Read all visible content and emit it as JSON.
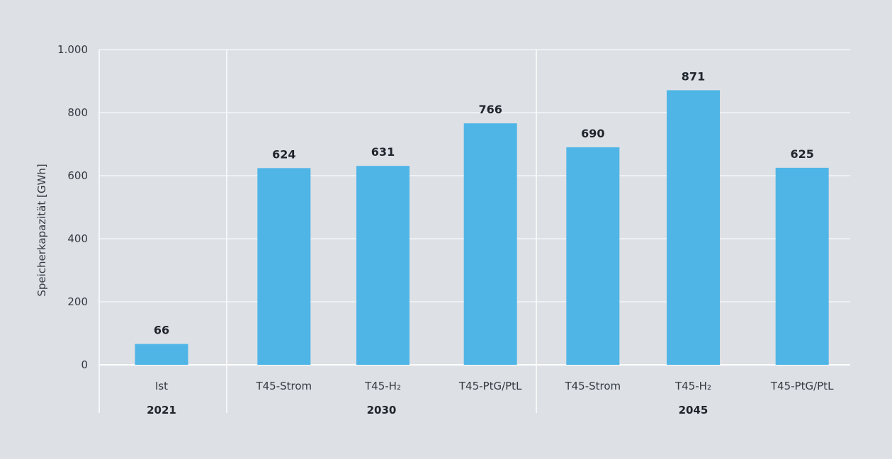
{
  "chart_data": {
    "type": "bar",
    "ylabel": "Speicherkapazität [GWh]",
    "ylim": [
      0,
      1000
    ],
    "yticks": [
      {
        "value": 0,
        "label": "0"
      },
      {
        "value": 200,
        "label": "200"
      },
      {
        "value": 400,
        "label": "400"
      },
      {
        "value": 600,
        "label": "600"
      },
      {
        "value": 800,
        "label": "800"
      },
      {
        "value": 1000,
        "label": "1.000"
      }
    ],
    "grid": true,
    "legend": "none",
    "bar_color": "#4fb5e6",
    "groups": [
      {
        "label": "2021",
        "bars": [
          {
            "category": "Ist",
            "value": 66
          }
        ]
      },
      {
        "label": "2030",
        "bars": [
          {
            "category": "T45-Strom",
            "value": 624
          },
          {
            "category": "T45-H₂",
            "value": 631
          },
          {
            "category": "T45-PtG/PtL",
            "value": 766
          }
        ]
      },
      {
        "label": "2045",
        "bars": [
          {
            "category": "T45-Strom",
            "value": 690
          },
          {
            "category": "T45-H₂",
            "value": 871
          },
          {
            "category": "T45-PtG/PtL",
            "value": 625
          }
        ]
      }
    ]
  }
}
